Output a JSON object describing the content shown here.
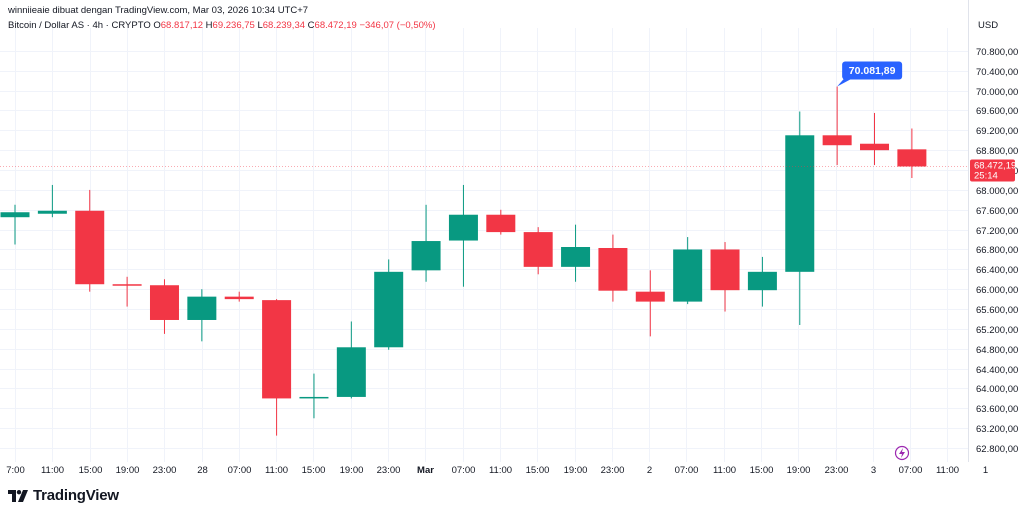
{
  "header": {
    "author_line": "winniieaie dibuat dengan TradingView.com, Mar 03, 2026 10:34 UTC+7",
    "symbol": "Bitcoin / Dollar AS · 4h · CRYPTO",
    "o_label": "O",
    "o_value": "68.817,12",
    "h_label": "H",
    "h_value": "69.236,75",
    "l_label": "L",
    "l_value": "68.239,34",
    "c_label": "C",
    "c_value": "68.472,19",
    "change": "−346,07 (−0,50%)"
  },
  "currency_label": "USD",
  "price_badge": {
    "price": "68.472,19",
    "countdown": "25:14"
  },
  "high_callout": "70.081,89",
  "brand": {
    "name": "TradingView"
  },
  "colors": {
    "up": "#089981",
    "down": "#f23645",
    "callout": "#2962ff",
    "text": "#131722"
  },
  "icons": {
    "flash": "lightning-icon",
    "logo": "tradingview-logo-icon"
  },
  "chart_data": {
    "type": "candlestick",
    "symbol": "Bitcoin / Dollar AS",
    "interval": "4h",
    "currency": "USD",
    "ylim": [
      62600,
      71100
    ],
    "y_ticks": [
      "62.800,00",
      "63.200,00",
      "63.600,00",
      "64.000,00",
      "64.400,00",
      "64.800,00",
      "65.200,00",
      "65.600,00",
      "66.000,00",
      "66.400,00",
      "66.800,00",
      "67.200,00",
      "67.600,00",
      "68.000,00",
      "68.400,00",
      "68.800,00",
      "69.200,00",
      "69.600,00",
      "70.000,00",
      "70.400,00",
      "70.800,00"
    ],
    "x_ticks": [
      "7:00",
      "11:00",
      "15:00",
      "19:00",
      "23:00",
      "28",
      "07:00",
      "11:00",
      "15:00",
      "19:00",
      "23:00",
      "Mar",
      "07:00",
      "11:00",
      "15:00",
      "19:00",
      "23:00",
      "2",
      "07:00",
      "11:00",
      "15:00",
      "19:00",
      "23:00",
      "3",
      "07:00",
      "11:00",
      "1"
    ],
    "bold_ticks": [
      "Mar"
    ],
    "last_price": 68472.19,
    "period_high": 70081.89,
    "candles": [
      {
        "o": 67450,
        "h": 67700,
        "l": 66900,
        "c": 67550
      },
      {
        "o": 67520,
        "h": 68100,
        "l": 67450,
        "c": 67580
      },
      {
        "o": 67580,
        "h": 68000,
        "l": 65950,
        "c": 66100
      },
      {
        "o": 66100,
        "h": 66250,
        "l": 65650,
        "c": 66080
      },
      {
        "o": 66080,
        "h": 66200,
        "l": 65100,
        "c": 65380
      },
      {
        "o": 65380,
        "h": 66000,
        "l": 64950,
        "c": 65850
      },
      {
        "o": 65850,
        "h": 65950,
        "l": 65750,
        "c": 65800
      },
      {
        "o": 65780,
        "h": 65800,
        "l": 63050,
        "c": 63800
      },
      {
        "o": 63820,
        "h": 64300,
        "l": 63400,
        "c": 63830
      },
      {
        "o": 63830,
        "h": 65350,
        "l": 63800,
        "c": 64830
      },
      {
        "o": 64830,
        "h": 66600,
        "l": 64780,
        "c": 66350
      },
      {
        "o": 66380,
        "h": 67700,
        "l": 66150,
        "c": 66970
      },
      {
        "o": 66980,
        "h": 68100,
        "l": 66050,
        "c": 67500
      },
      {
        "o": 67500,
        "h": 67600,
        "l": 67100,
        "c": 67150
      },
      {
        "o": 67150,
        "h": 67250,
        "l": 66300,
        "c": 66450
      },
      {
        "o": 66450,
        "h": 67300,
        "l": 66150,
        "c": 66850
      },
      {
        "o": 66830,
        "h": 67100,
        "l": 65750,
        "c": 65970
      },
      {
        "o": 65950,
        "h": 66380,
        "l": 65050,
        "c": 65750
      },
      {
        "o": 65750,
        "h": 67050,
        "l": 65700,
        "c": 66800
      },
      {
        "o": 66800,
        "h": 66950,
        "l": 65550,
        "c": 65980
      },
      {
        "o": 65980,
        "h": 66650,
        "l": 65650,
        "c": 66350
      },
      {
        "o": 66350,
        "h": 69580,
        "l": 65280,
        "c": 69100
      },
      {
        "o": 69100,
        "h": 70081.89,
        "l": 68500,
        "c": 68900
      },
      {
        "o": 68930,
        "h": 69550,
        "l": 68500,
        "c": 68800
      },
      {
        "o": 68817.12,
        "h": 69236.75,
        "l": 68239.34,
        "c": 68472.19
      }
    ]
  }
}
